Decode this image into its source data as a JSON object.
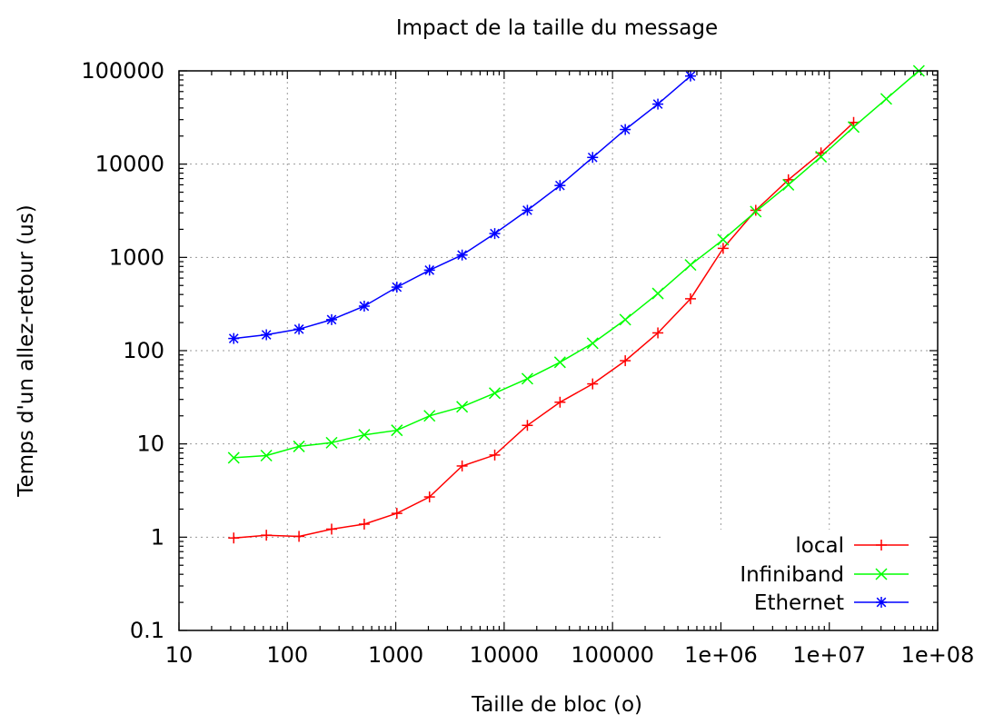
{
  "chart_data": {
    "type": "line",
    "title": "Impact de la taille du message",
    "xlabel": "Taille de bloc (o)",
    "ylabel": "Temps d'un allez-retour (us)",
    "xscale": "log",
    "yscale": "log",
    "xlim": [
      10,
      100000000
    ],
    "ylim": [
      0.1,
      100000
    ],
    "grid": true,
    "legend_position": "bottom-right",
    "x_ticks": [
      10,
      100,
      1000,
      10000,
      100000,
      1000000,
      10000000,
      100000000
    ],
    "x_tick_labels": [
      "10",
      "100",
      "1000",
      "10000",
      "100000",
      "1e+06",
      "1e+07",
      "1e+08"
    ],
    "y_ticks": [
      0.1,
      1,
      10,
      100,
      1000,
      10000,
      100000
    ],
    "y_tick_labels": [
      "0.1",
      "1",
      "10",
      "100",
      "1000",
      "10000",
      "100000"
    ],
    "series": [
      {
        "name": "local",
        "color": "#ff0000",
        "marker": "plus",
        "x": [
          32,
          64,
          128,
          256,
          512,
          1024,
          2048,
          4096,
          8192,
          16384,
          32768,
          65536,
          131072,
          262144,
          524288,
          1048576,
          2097152,
          4194304,
          8388608,
          16777216
        ],
        "y": [
          0.98,
          1.05,
          1.02,
          1.22,
          1.38,
          1.8,
          2.7,
          5.8,
          7.6,
          15.8,
          28,
          44,
          78,
          155,
          360,
          1250,
          3200,
          6800,
          13200,
          28000
        ]
      },
      {
        "name": "Infiniband",
        "color": "#00ff00",
        "marker": "cross",
        "x": [
          32,
          64,
          128,
          256,
          512,
          1024,
          2048,
          4096,
          8192,
          16384,
          32768,
          65536,
          131072,
          262144,
          524288,
          1048576,
          2097152,
          4194304,
          8388608,
          16777216,
          33554432,
          67108864
        ],
        "y": [
          7.1,
          7.5,
          9.4,
          10.3,
          12.5,
          14,
          20,
          25,
          35,
          50,
          75,
          120,
          215,
          410,
          830,
          1550,
          3100,
          6000,
          12000,
          25000,
          50000,
          100000
        ]
      },
      {
        "name": "Ethernet",
        "color": "#0000ff",
        "marker": "star",
        "x": [
          32,
          64,
          128,
          256,
          512,
          1024,
          2048,
          4096,
          8192,
          16384,
          32768,
          65536,
          131072,
          262144,
          524288
        ],
        "y": [
          135,
          148,
          170,
          215,
          300,
          480,
          730,
          1060,
          1800,
          3200,
          5900,
          11800,
          23500,
          44000,
          88000
        ]
      }
    ]
  }
}
